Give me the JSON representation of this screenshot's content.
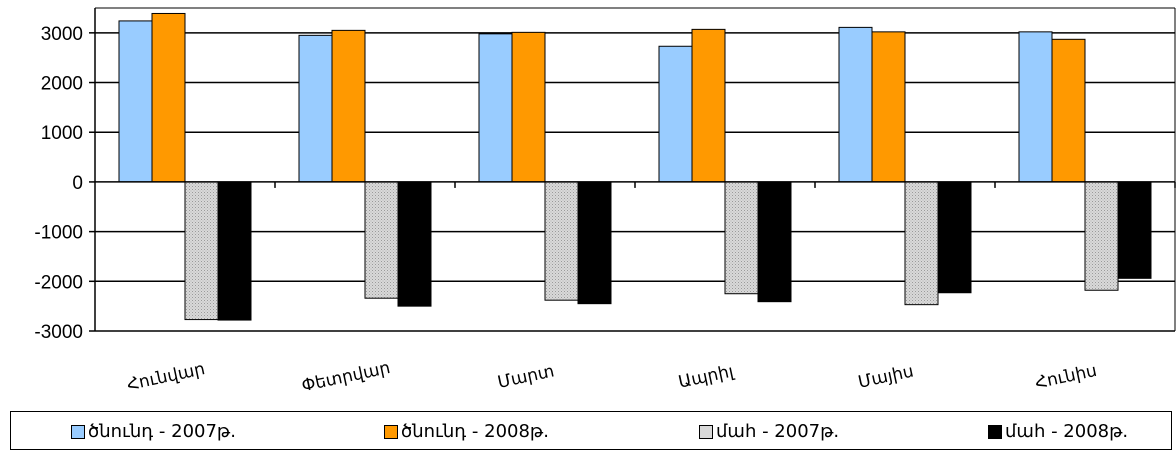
{
  "chart_data": {
    "type": "bar",
    "categories": [
      "Հունվար",
      "Փետրվար",
      "Մարտ",
      "Ապրիլ",
      "Մայիս",
      "Հունիս"
    ],
    "series": [
      {
        "name": "ծնունդ - 2007թ.",
        "color": "#99ccff",
        "pattern": "solid",
        "values": [
          3240,
          2950,
          2980,
          2730,
          3110,
          3020
        ]
      },
      {
        "name": "ծնունդ - 2008թ.",
        "color": "#ff9900",
        "pattern": "solid",
        "values": [
          3390,
          3050,
          3010,
          3070,
          3020,
          2870
        ]
      },
      {
        "name": "մահ - 2007թ.",
        "color": "#c0c0c0",
        "pattern": "dotted",
        "values": [
          -2770,
          -2340,
          -2380,
          -2250,
          -2470,
          -2180
        ]
      },
      {
        "name": "մահ - 2008թ.",
        "color": "#000000",
        "pattern": "solid",
        "values": [
          -2780,
          -2500,
          -2450,
          -2410,
          -2230,
          -1940
        ]
      }
    ],
    "yticks": [
      3000,
      2000,
      1000,
      0,
      -1000,
      -2000,
      -3000
    ],
    "ylim": [
      -3000,
      3500
    ],
    "grid": true,
    "legend_position": "bottom",
    "title": "",
    "xlabel": "",
    "ylabel": ""
  }
}
